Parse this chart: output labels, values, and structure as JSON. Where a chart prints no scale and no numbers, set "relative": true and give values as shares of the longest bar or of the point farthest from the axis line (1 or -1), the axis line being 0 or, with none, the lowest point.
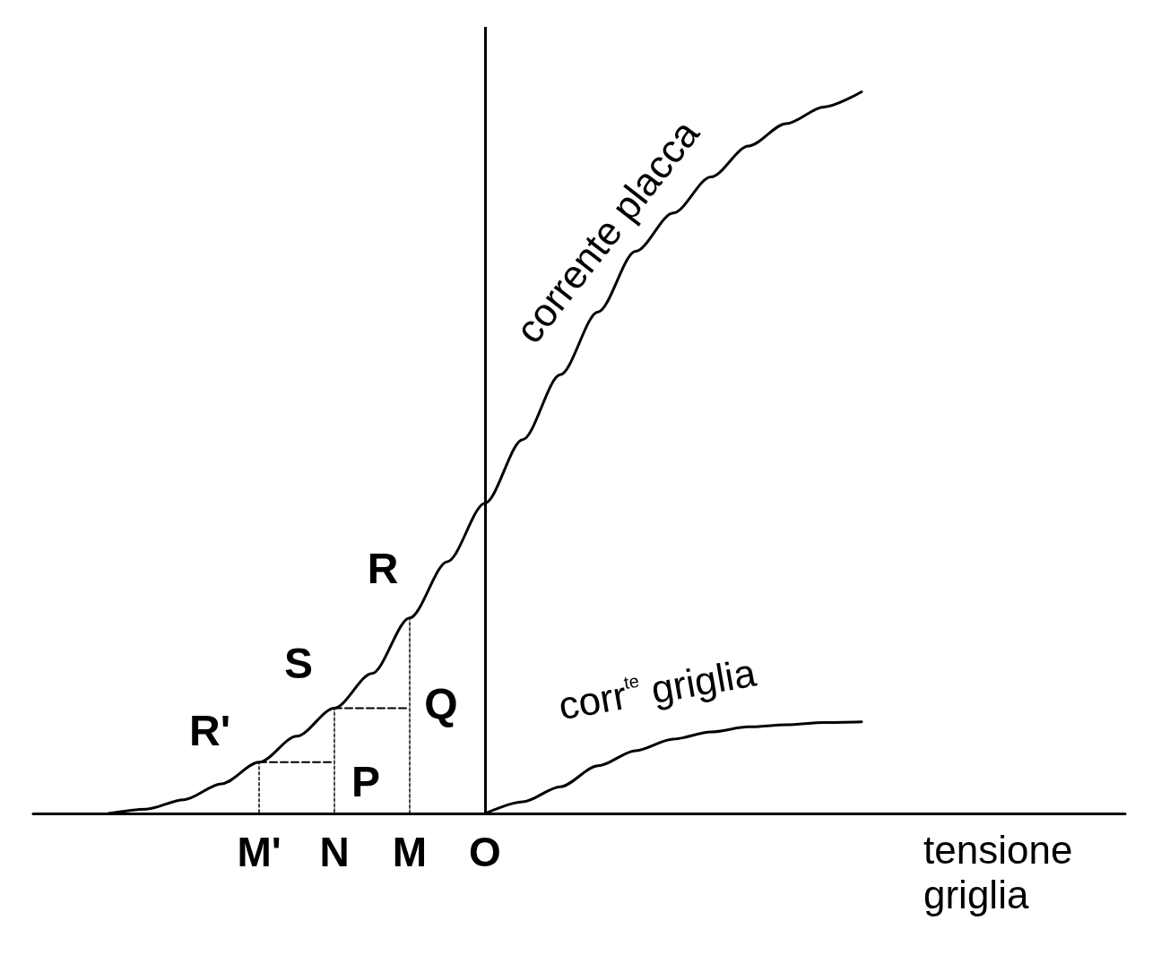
{
  "chart_data": {
    "type": "line",
    "relative": true,
    "xlabel": "tensione griglia",
    "categories": [
      null,
      null,
      null,
      null,
      null,
      null,
      "M'",
      null,
      "N",
      null,
      "M",
      null,
      "O",
      null,
      null,
      null,
      null,
      null,
      null,
      null,
      null,
      null,
      null,
      null,
      null,
      null,
      null,
      null,
      null,
      null
    ],
    "marker": "none",
    "line_style": "solid",
    "legend": false,
    "series": [
      {
        "name": "corrente placca",
        "color": "#000000",
        "values": [
          null,
          null,
          0,
          0.006,
          0.019,
          0.041,
          0.071,
          0.107,
          0.146,
          0.194,
          0.271,
          0.349,
          0.43,
          0.518,
          0.608,
          0.695,
          0.779,
          0.832,
          0.882,
          0.925,
          0.956,
          0.979,
          1,
          null,
          null,
          null,
          null,
          null,
          null,
          null
        ]
      },
      {
        "name": "corr$^{te}$ griglia",
        "color": "#000000",
        "values": [
          null,
          null,
          null,
          null,
          null,
          null,
          null,
          null,
          null,
          null,
          null,
          null,
          0,
          0.016,
          0.037,
          0.066,
          0.087,
          0.103,
          0.113,
          0.12,
          0.123,
          0.126,
          0.127,
          null,
          null,
          null,
          null,
          null,
          null,
          null
        ]
      },
      {
        "type": "bar",
        "color": "#000000",
        "line_style": "dashed",
        "values": [
          null,
          null,
          null,
          null,
          null,
          null,
          0.071,
          null,
          0.146,
          null,
          0.271,
          null,
          null,
          null,
          null,
          null,
          null,
          null,
          null,
          null,
          null,
          null,
          null,
          null,
          null,
          null,
          null,
          null,
          null,
          null
        ]
      },
      {
        "color": "#000000",
        "line_style": "dashed",
        "values": [
          null,
          null,
          null,
          null,
          null,
          null,
          0.071,
          0.071,
          0.071,
          null,
          null,
          null,
          null,
          null,
          null,
          null,
          null,
          null,
          null,
          null,
          null,
          null,
          null,
          null,
          null,
          null,
          null,
          null,
          null,
          null
        ]
      },
      {
        "color": "#000000",
        "line_style": "dashed",
        "values": [
          null,
          null,
          null,
          null,
          null,
          null,
          null,
          null,
          0.146,
          0.146,
          0.146,
          null,
          null,
          null,
          null,
          null,
          null,
          null,
          null,
          null,
          null,
          null,
          null,
          null,
          null,
          null,
          null,
          null,
          null,
          null
        ]
      }
    ],
    "ref_lines": [
      {
        "axis": "x",
        "value": "O",
        "color": "#000000"
      }
    ],
    "annotations": [
      {
        "text": "R'",
        "x": "M'",
        "y": 0.071
      },
      {
        "text": "S",
        "x": "N",
        "y": 0.146
      },
      {
        "text": "R",
        "x": "M",
        "y": 0.271
      },
      {
        "text": "P",
        "x": "N",
        "y": 0.071
      },
      {
        "text": "Q",
        "x": "M",
        "y": 0.146
      }
    ]
  }
}
